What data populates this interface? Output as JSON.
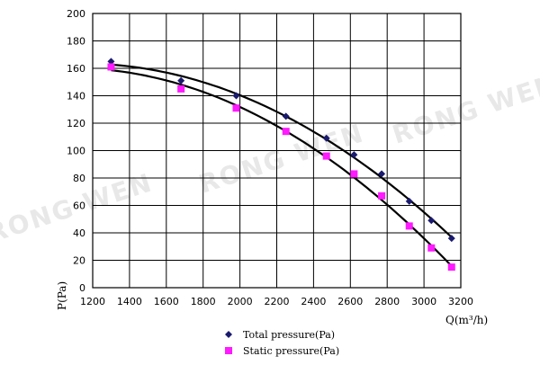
{
  "watermark": "RONG WEN",
  "chart_data": {
    "type": "scatter",
    "xlabel": "Q(m³/h)",
    "ylabel": "P(Pa)",
    "xlim": [
      1200,
      3200
    ],
    "ylim": [
      0,
      200
    ],
    "xticks": [
      1200,
      1400,
      1600,
      1800,
      2000,
      2200,
      2400,
      2600,
      2800,
      3000,
      3200
    ],
    "yticks": [
      0,
      20,
      40,
      60,
      80,
      100,
      120,
      140,
      160,
      180,
      200
    ],
    "grid": true,
    "legend_position": "bottom",
    "series": [
      {
        "name": "Total pressure(Pa)",
        "marker": "diamond",
        "color": "#1a1a6e",
        "x": [
          1300,
          1680,
          1980,
          2250,
          2470,
          2620,
          2770,
          2920,
          3040,
          3150
        ],
        "y": [
          165,
          151,
          140,
          125,
          109,
          97,
          83,
          63,
          49,
          36
        ]
      },
      {
        "name": "Static pressure(Pa)",
        "marker": "square",
        "color": "#ff1aff",
        "x": [
          1300,
          1680,
          1980,
          2250,
          2470,
          2620,
          2770,
          2920,
          3040,
          3150
        ],
        "y": [
          161,
          145,
          131,
          114,
          96,
          83,
          67,
          45,
          29,
          15
        ]
      }
    ]
  }
}
